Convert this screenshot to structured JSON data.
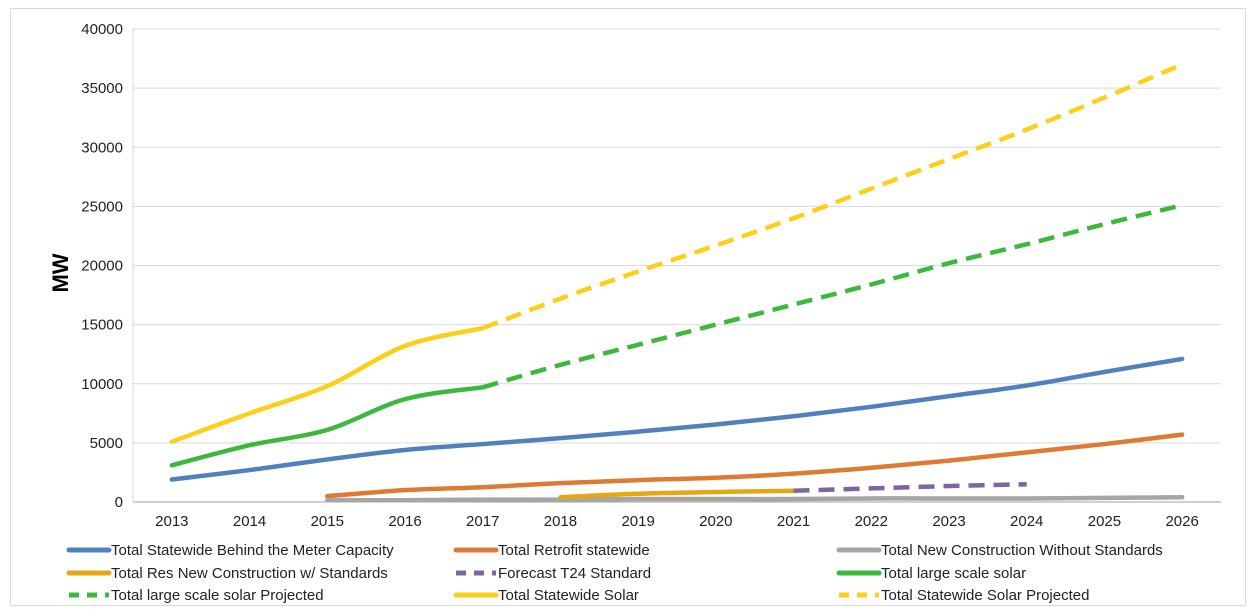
{
  "chart_data": {
    "type": "line",
    "title": "",
    "xlabel": "",
    "ylabel": "MW",
    "ylim": [
      0,
      40000
    ],
    "yticks": [
      0,
      5000,
      10000,
      15000,
      20000,
      25000,
      30000,
      35000,
      40000
    ],
    "x": [
      "2013",
      "2014",
      "2015",
      "2016",
      "2017",
      "2018",
      "2019",
      "2020",
      "2021",
      "2022",
      "2023",
      "2024",
      "2025",
      "2026"
    ],
    "grid": true,
    "legend_position": "bottom",
    "series": [
      {
        "name": "Total Statewide Behind the Meter Capacity",
        "color": "#4f81bd",
        "dashed": false,
        "x": [
          "2013",
          "2014",
          "2015",
          "2016",
          "2017",
          "2018",
          "2019",
          "2020",
          "2021",
          "2022",
          "2023",
          "2024",
          "2025",
          "2026"
        ],
        "values": [
          1900,
          2700,
          3600,
          4400,
          4900,
          5400,
          5950,
          6550,
          7250,
          8050,
          8950,
          9850,
          11000,
          12100
        ]
      },
      {
        "name": "Total Retrofit statewide",
        "color": "#dd7b33",
        "dashed": false,
        "x": [
          "2015",
          "2016",
          "2017",
          "2018",
          "2019",
          "2020",
          "2021",
          "2022",
          "2023",
          "2024",
          "2025",
          "2026"
        ],
        "values": [
          500,
          1000,
          1250,
          1600,
          1850,
          2050,
          2400,
          2900,
          3500,
          4200,
          4900,
          5700
        ]
      },
      {
        "name": "Total New Construction Without Standards",
        "color": "#a6a6a6",
        "dashed": false,
        "x": [
          "2015",
          "2016",
          "2017",
          "2018",
          "2019",
          "2020",
          "2021",
          "2022",
          "2023",
          "2024",
          "2025",
          "2026"
        ],
        "values": [
          150,
          150,
          200,
          200,
          250,
          250,
          250,
          300,
          300,
          300,
          350,
          400
        ]
      },
      {
        "name": "Total Res New Construction w/ Standards",
        "color": "#e5a812",
        "dashed": false,
        "x": [
          "2018",
          "2019",
          "2020",
          "2021"
        ],
        "values": [
          400,
          700,
          850,
          950
        ]
      },
      {
        "name": "Forecast T24 Standard",
        "color": "#8064a2",
        "dashed": true,
        "x": [
          "2021",
          "2022",
          "2023",
          "2024"
        ],
        "values": [
          950,
          1150,
          1350,
          1500
        ]
      },
      {
        "name": "Total large scale solar",
        "color": "#3cb93c",
        "dashed": false,
        "x": [
          "2013",
          "2014",
          "2015",
          "2016",
          "2017"
        ],
        "values": [
          3100,
          4800,
          6100,
          8700,
          9700
        ]
      },
      {
        "name": "Total large scale solar Projected",
        "color": "#3cb93c",
        "dashed": true,
        "x": [
          "2017",
          "2018",
          "2019",
          "2020",
          "2021",
          "2022",
          "2023",
          "2024",
          "2025",
          "2026"
        ],
        "values": [
          9700,
          11600,
          13300,
          15000,
          16700,
          18400,
          20200,
          21800,
          23500,
          25100
        ]
      },
      {
        "name": "Total Statewide Solar",
        "color": "#fdd017",
        "dashed": false,
        "x": [
          "2013",
          "2014",
          "2015",
          "2016",
          "2017"
        ],
        "values": [
          5100,
          7500,
          9800,
          13200,
          14700
        ]
      },
      {
        "name": "Total Statewide Solar Projected",
        "color": "#fdd017",
        "dashed": true,
        "x": [
          "2017",
          "2018",
          "2019",
          "2020",
          "2021",
          "2022",
          "2023",
          "2024",
          "2025",
          "2026"
        ],
        "values": [
          14700,
          17200,
          19500,
          21700,
          24000,
          26500,
          29000,
          31500,
          34200,
          37000
        ]
      }
    ]
  }
}
